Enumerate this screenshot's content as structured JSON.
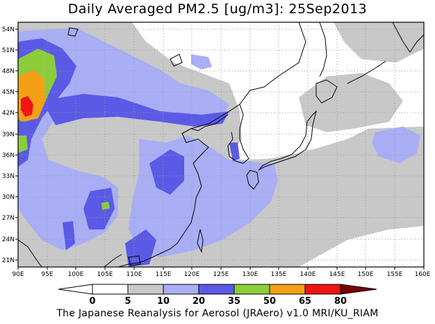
{
  "title": "Daily Averaged PM2.5 [ug/m3]: 25Sep2013",
  "credit": "The Japanese Reanalysis for Aerosol (JRAero) v1.0 MRI/KU_RIAM",
  "lon_ticks": [
    "90E",
    "95E",
    "100E",
    "105E",
    "110E",
    "115E",
    "120E",
    "125E",
    "130E",
    "135E",
    "140E",
    "145E",
    "150E",
    "155E",
    "160E"
  ],
  "lat_ticks": [
    "21N",
    "24N",
    "27N",
    "30N",
    "33N",
    "36N",
    "39N",
    "42N",
    "45N",
    "48N",
    "51N",
    "54N"
  ],
  "colorbar": {
    "labels": [
      "0",
      "5",
      "10",
      "20",
      "35",
      "50",
      "65",
      "80"
    ],
    "colors": [
      "#ffffff",
      "#c8c8c8",
      "#a9aef5",
      "#5a5ae6",
      "#8ccd3c",
      "#f5a014",
      "#f01414",
      "#780000"
    ]
  },
  "map_extent": {
    "lon": [
      90,
      160
    ],
    "lat": [
      20,
      55
    ]
  }
}
